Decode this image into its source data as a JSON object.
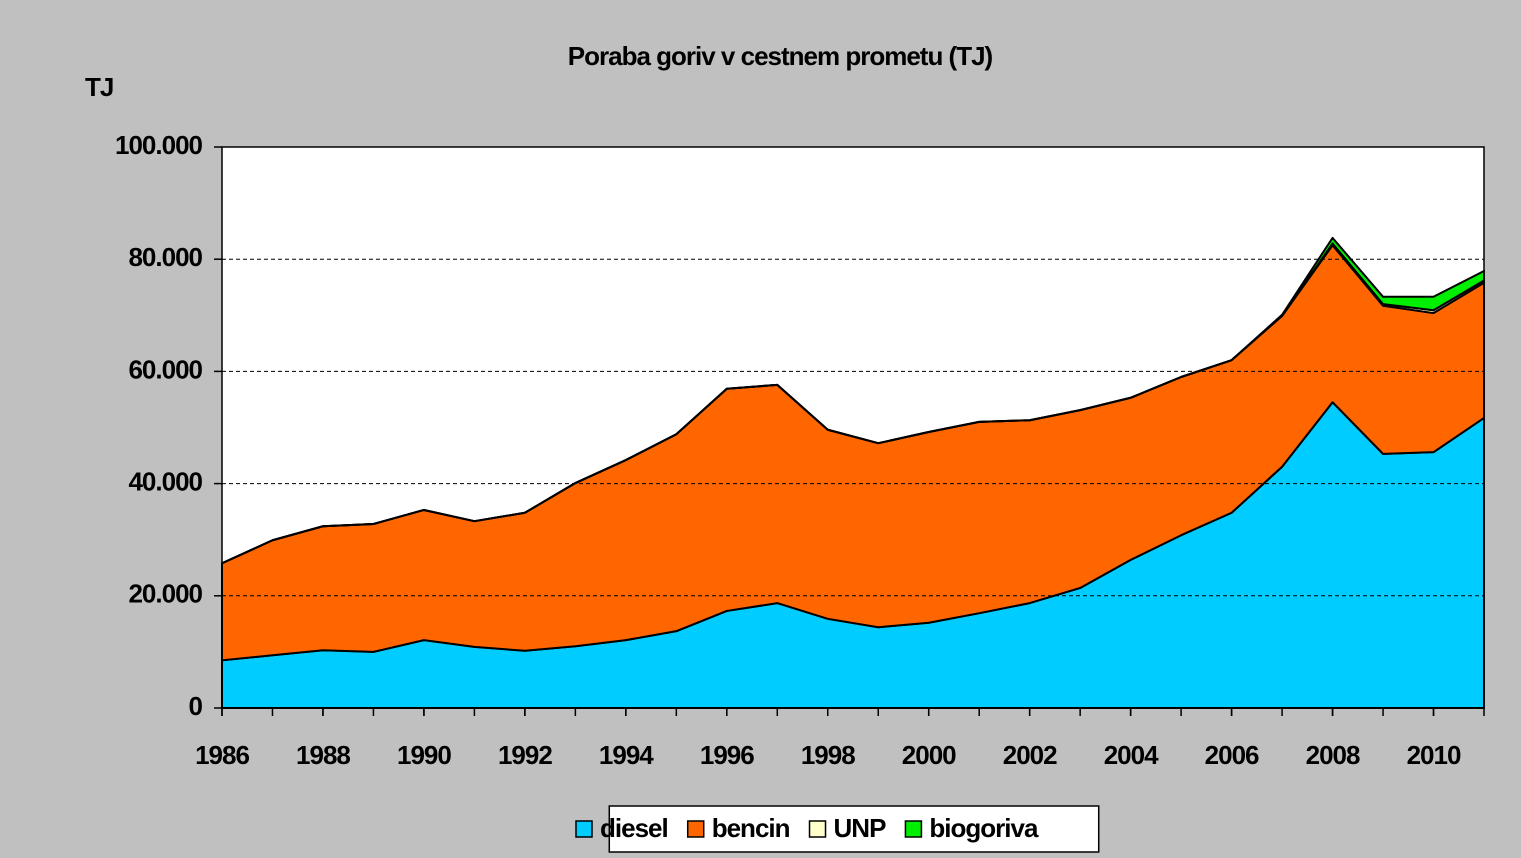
{
  "chart_data": {
    "type": "stacked-area",
    "title": "Poraba goriv v cestnem prometu (TJ)",
    "y_label": "TJ",
    "x": [
      1986,
      1987,
      1988,
      1989,
      1990,
      1991,
      1992,
      1993,
      1994,
      1995,
      1996,
      1997,
      1998,
      1999,
      2000,
      2001,
      2002,
      2003,
      2004,
      2005,
      2006,
      2007,
      2008,
      2009,
      2010,
      2011
    ],
    "series": [
      {
        "name": "diesel",
        "color": "#00ccff",
        "values": [
          8500,
          9400,
          10300,
          10000,
          12100,
          10900,
          10200,
          11000,
          12100,
          13700,
          17300,
          18700,
          15900,
          14400,
          15200,
          16900,
          18700,
          21400,
          26400,
          30800,
          34800,
          43000,
          54500,
          45300,
          45600,
          51700
        ]
      },
      {
        "name": "bencin",
        "color": "#ff6600",
        "values": [
          17300,
          20500,
          22100,
          22800,
          23200,
          22400,
          24600,
          29100,
          32100,
          35100,
          39600,
          38900,
          33700,
          32800,
          34000,
          34100,
          32600,
          31700,
          28900,
          28200,
          27200,
          26900,
          28000,
          26400,
          24800,
          24100
        ]
      },
      {
        "name": "UNP",
        "color": "#ffffcc",
        "values": [
          0,
          0,
          0,
          0,
          0,
          0,
          0,
          0,
          0,
          0,
          0,
          0,
          0,
          0,
          0,
          0,
          0,
          0,
          0,
          0,
          0,
          0,
          300,
          300,
          500,
          400
        ]
      },
      {
        "name": "biogoriva",
        "color": "#00ee00",
        "values": [
          0,
          0,
          0,
          0,
          0,
          0,
          0,
          0,
          0,
          0,
          0,
          0,
          0,
          0,
          0,
          0,
          0,
          0,
          0,
          0,
          0,
          200,
          1000,
          1300,
          2400,
          1700
        ]
      }
    ],
    "xlim": [
      1986,
      2011
    ],
    "xticks": [
      1986,
      1988,
      1990,
      1992,
      1994,
      1996,
      1998,
      2000,
      2002,
      2004,
      2006,
      2008,
      2010
    ],
    "ylim": [
      0,
      100000
    ],
    "yticks": [
      0,
      {
        "value": 20000,
        "label": "20.000"
      },
      {
        "value": 40000,
        "label": "40.000"
      },
      {
        "value": 60000,
        "label": "60.000"
      },
      {
        "value": 80000,
        "label": "80.000"
      },
      {
        "value": 100000,
        "label": "100.000"
      }
    ],
    "grid": true,
    "legend": "bottom"
  }
}
